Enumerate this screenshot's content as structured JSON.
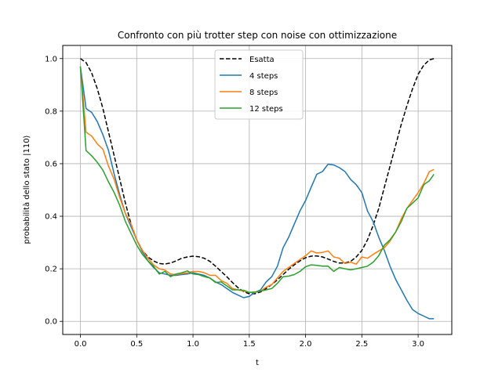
{
  "chart_data": {
    "type": "line",
    "title": "Confronto con più trotter step con noise con ottimizzazione",
    "xlabel": "t",
    "ylabel": "probabilità dello stato |110⟩",
    "xlim": [
      -0.157,
      3.299
    ],
    "ylim": [
      -0.05,
      1.05
    ],
    "xticks": [
      0.0,
      0.5,
      1.0,
      1.5,
      2.0,
      2.5,
      3.0
    ],
    "xtick_labels": [
      "0.0",
      "0.5",
      "1.0",
      "1.5",
      "2.0",
      "2.5",
      "3.0"
    ],
    "yticks": [
      0.0,
      0.2,
      0.4,
      0.6,
      0.8,
      1.0
    ],
    "ytick_labels": [
      "0.0",
      "0.2",
      "0.4",
      "0.6",
      "0.8",
      "1.0"
    ],
    "grid": true,
    "legend_position": "top-center",
    "series": [
      {
        "name": "Esatta",
        "color": "#000000",
        "style": "dashed",
        "x": [
          0.0,
          0.05,
          0.1,
          0.15,
          0.2,
          0.25,
          0.3,
          0.35,
          0.4,
          0.45,
          0.5,
          0.55,
          0.6,
          0.65,
          0.7,
          0.75,
          0.8,
          0.85,
          0.9,
          0.95,
          1.0,
          1.05,
          1.1,
          1.15,
          1.2,
          1.25,
          1.3,
          1.35,
          1.4,
          1.45,
          1.5,
          1.55,
          1.6,
          1.65,
          1.7,
          1.75,
          1.8,
          1.85,
          1.9,
          1.95,
          2.0,
          2.05,
          2.1,
          2.15,
          2.2,
          2.25,
          2.3,
          2.35,
          2.4,
          2.45,
          2.5,
          2.55,
          2.6,
          2.65,
          2.7,
          2.75,
          2.8,
          2.85,
          2.9,
          2.95,
          3.0,
          3.05,
          3.1,
          3.14
        ],
        "y": [
          1.0,
          0.985,
          0.945,
          0.885,
          0.81,
          0.72,
          0.63,
          0.54,
          0.45,
          0.37,
          0.31,
          0.27,
          0.245,
          0.23,
          0.22,
          0.218,
          0.222,
          0.23,
          0.24,
          0.245,
          0.248,
          0.246,
          0.24,
          0.228,
          0.21,
          0.19,
          0.17,
          0.148,
          0.128,
          0.113,
          0.105,
          0.105,
          0.112,
          0.125,
          0.14,
          0.158,
          0.178,
          0.198,
          0.215,
          0.23,
          0.242,
          0.248,
          0.249,
          0.245,
          0.237,
          0.228,
          0.222,
          0.222,
          0.228,
          0.245,
          0.27,
          0.31,
          0.365,
          0.43,
          0.51,
          0.59,
          0.67,
          0.75,
          0.82,
          0.885,
          0.94,
          0.975,
          0.995,
          1.0
        ]
      },
      {
        "name": "4 steps",
        "color": "#1f77b4",
        "style": "solid",
        "x": [
          0.0,
          0.05,
          0.1,
          0.15,
          0.2,
          0.25,
          0.3,
          0.35,
          0.4,
          0.45,
          0.5,
          0.55,
          0.6,
          0.65,
          0.7,
          0.75,
          0.8,
          0.85,
          0.9,
          0.95,
          1.0,
          1.05,
          1.1,
          1.15,
          1.2,
          1.25,
          1.3,
          1.35,
          1.4,
          1.45,
          1.5,
          1.55,
          1.6,
          1.65,
          1.7,
          1.75,
          1.8,
          1.85,
          1.9,
          1.95,
          2.0,
          2.05,
          2.1,
          2.15,
          2.2,
          2.25,
          2.3,
          2.35,
          2.4,
          2.45,
          2.5,
          2.55,
          2.6,
          2.65,
          2.7,
          2.75,
          2.8,
          2.85,
          2.9,
          2.95,
          3.0,
          3.05,
          3.1,
          3.14
        ],
        "y": [
          0.97,
          0.81,
          0.795,
          0.76,
          0.71,
          0.65,
          0.56,
          0.48,
          0.41,
          0.36,
          0.31,
          0.265,
          0.23,
          0.205,
          0.185,
          0.18,
          0.175,
          0.175,
          0.178,
          0.18,
          0.185,
          0.18,
          0.175,
          0.165,
          0.15,
          0.14,
          0.125,
          0.11,
          0.1,
          0.09,
          0.095,
          0.11,
          0.12,
          0.15,
          0.17,
          0.21,
          0.28,
          0.32,
          0.37,
          0.42,
          0.46,
          0.51,
          0.56,
          0.57,
          0.598,
          0.595,
          0.585,
          0.57,
          0.54,
          0.52,
          0.49,
          0.42,
          0.38,
          0.32,
          0.27,
          0.21,
          0.16,
          0.12,
          0.08,
          0.045,
          0.03,
          0.02,
          0.01,
          0.01
        ]
      },
      {
        "name": "8 steps",
        "color": "#ff7f0e",
        "style": "solid",
        "x": [
          0.0,
          0.05,
          0.1,
          0.15,
          0.2,
          0.25,
          0.3,
          0.35,
          0.4,
          0.45,
          0.5,
          0.55,
          0.6,
          0.65,
          0.7,
          0.75,
          0.8,
          0.85,
          0.9,
          0.95,
          1.0,
          1.05,
          1.1,
          1.15,
          1.2,
          1.25,
          1.3,
          1.35,
          1.4,
          1.45,
          1.5,
          1.55,
          1.6,
          1.65,
          1.7,
          1.75,
          1.8,
          1.85,
          1.9,
          1.95,
          2.0,
          2.05,
          2.1,
          2.15,
          2.2,
          2.25,
          2.3,
          2.35,
          2.4,
          2.45,
          2.5,
          2.55,
          2.6,
          2.65,
          2.7,
          2.75,
          2.8,
          2.85,
          2.9,
          2.95,
          3.0,
          3.05,
          3.1,
          3.14
        ],
        "y": [
          0.97,
          0.72,
          0.705,
          0.675,
          0.655,
          0.59,
          0.54,
          0.47,
          0.41,
          0.37,
          0.31,
          0.27,
          0.24,
          0.215,
          0.2,
          0.195,
          0.18,
          0.178,
          0.182,
          0.185,
          0.19,
          0.19,
          0.185,
          0.175,
          0.175,
          0.155,
          0.145,
          0.125,
          0.12,
          0.115,
          0.11,
          0.11,
          0.115,
          0.13,
          0.14,
          0.165,
          0.19,
          0.205,
          0.22,
          0.235,
          0.25,
          0.268,
          0.26,
          0.262,
          0.268,
          0.245,
          0.24,
          0.22,
          0.225,
          0.218,
          0.245,
          0.24,
          0.255,
          0.268,
          0.28,
          0.305,
          0.34,
          0.39,
          0.43,
          0.46,
          0.49,
          0.525,
          0.57,
          0.578
        ]
      },
      {
        "name": "12 steps",
        "color": "#2ca02c",
        "style": "solid",
        "x": [
          0.0,
          0.05,
          0.1,
          0.15,
          0.2,
          0.25,
          0.3,
          0.35,
          0.4,
          0.45,
          0.5,
          0.55,
          0.6,
          0.65,
          0.7,
          0.75,
          0.8,
          0.85,
          0.9,
          0.95,
          1.0,
          1.05,
          1.1,
          1.15,
          1.2,
          1.25,
          1.3,
          1.35,
          1.4,
          1.45,
          1.5,
          1.55,
          1.6,
          1.65,
          1.7,
          1.75,
          1.8,
          1.85,
          1.9,
          1.95,
          2.0,
          2.05,
          2.1,
          2.15,
          2.2,
          2.25,
          2.3,
          2.35,
          2.4,
          2.45,
          2.5,
          2.55,
          2.6,
          2.65,
          2.7,
          2.75,
          2.8,
          2.85,
          2.9,
          2.95,
          3.0,
          3.05,
          3.1,
          3.14
        ],
        "y": [
          0.97,
          0.65,
          0.63,
          0.605,
          0.575,
          0.53,
          0.49,
          0.44,
          0.38,
          0.335,
          0.29,
          0.255,
          0.23,
          0.21,
          0.18,
          0.19,
          0.17,
          0.18,
          0.185,
          0.192,
          0.18,
          0.178,
          0.17,
          0.165,
          0.148,
          0.15,
          0.135,
          0.12,
          0.12,
          0.118,
          0.11,
          0.112,
          0.115,
          0.12,
          0.125,
          0.145,
          0.17,
          0.172,
          0.178,
          0.19,
          0.208,
          0.215,
          0.213,
          0.21,
          0.21,
          0.19,
          0.205,
          0.2,
          0.196,
          0.2,
          0.205,
          0.21,
          0.225,
          0.25,
          0.29,
          0.31,
          0.34,
          0.38,
          0.43,
          0.45,
          0.47,
          0.52,
          0.535,
          0.56
        ]
      }
    ]
  }
}
